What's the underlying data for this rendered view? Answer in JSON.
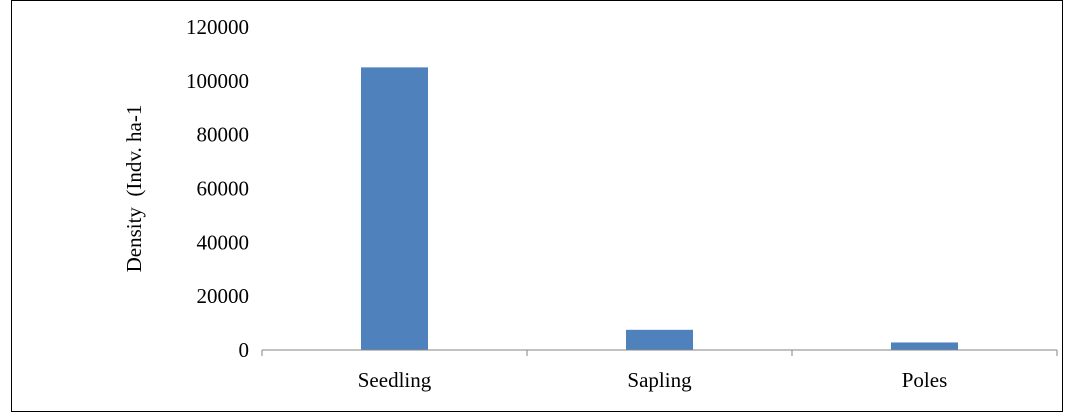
{
  "chart_data": {
    "type": "bar",
    "title": "",
    "xlabel": "",
    "ylabel": "Density  (Indv. ha-1",
    "categories": [
      "Seedling",
      "Sapling",
      "Poles"
    ],
    "values": [
      105000,
      7500,
      2800
    ],
    "ylim": [
      0,
      120000
    ],
    "yticks": [
      0,
      20000,
      40000,
      60000,
      80000,
      100000,
      120000
    ],
    "grid": false,
    "legend": "none",
    "colors": {
      "bar": "#4f81bd",
      "axis": "#868686",
      "text": "#000000"
    }
  }
}
